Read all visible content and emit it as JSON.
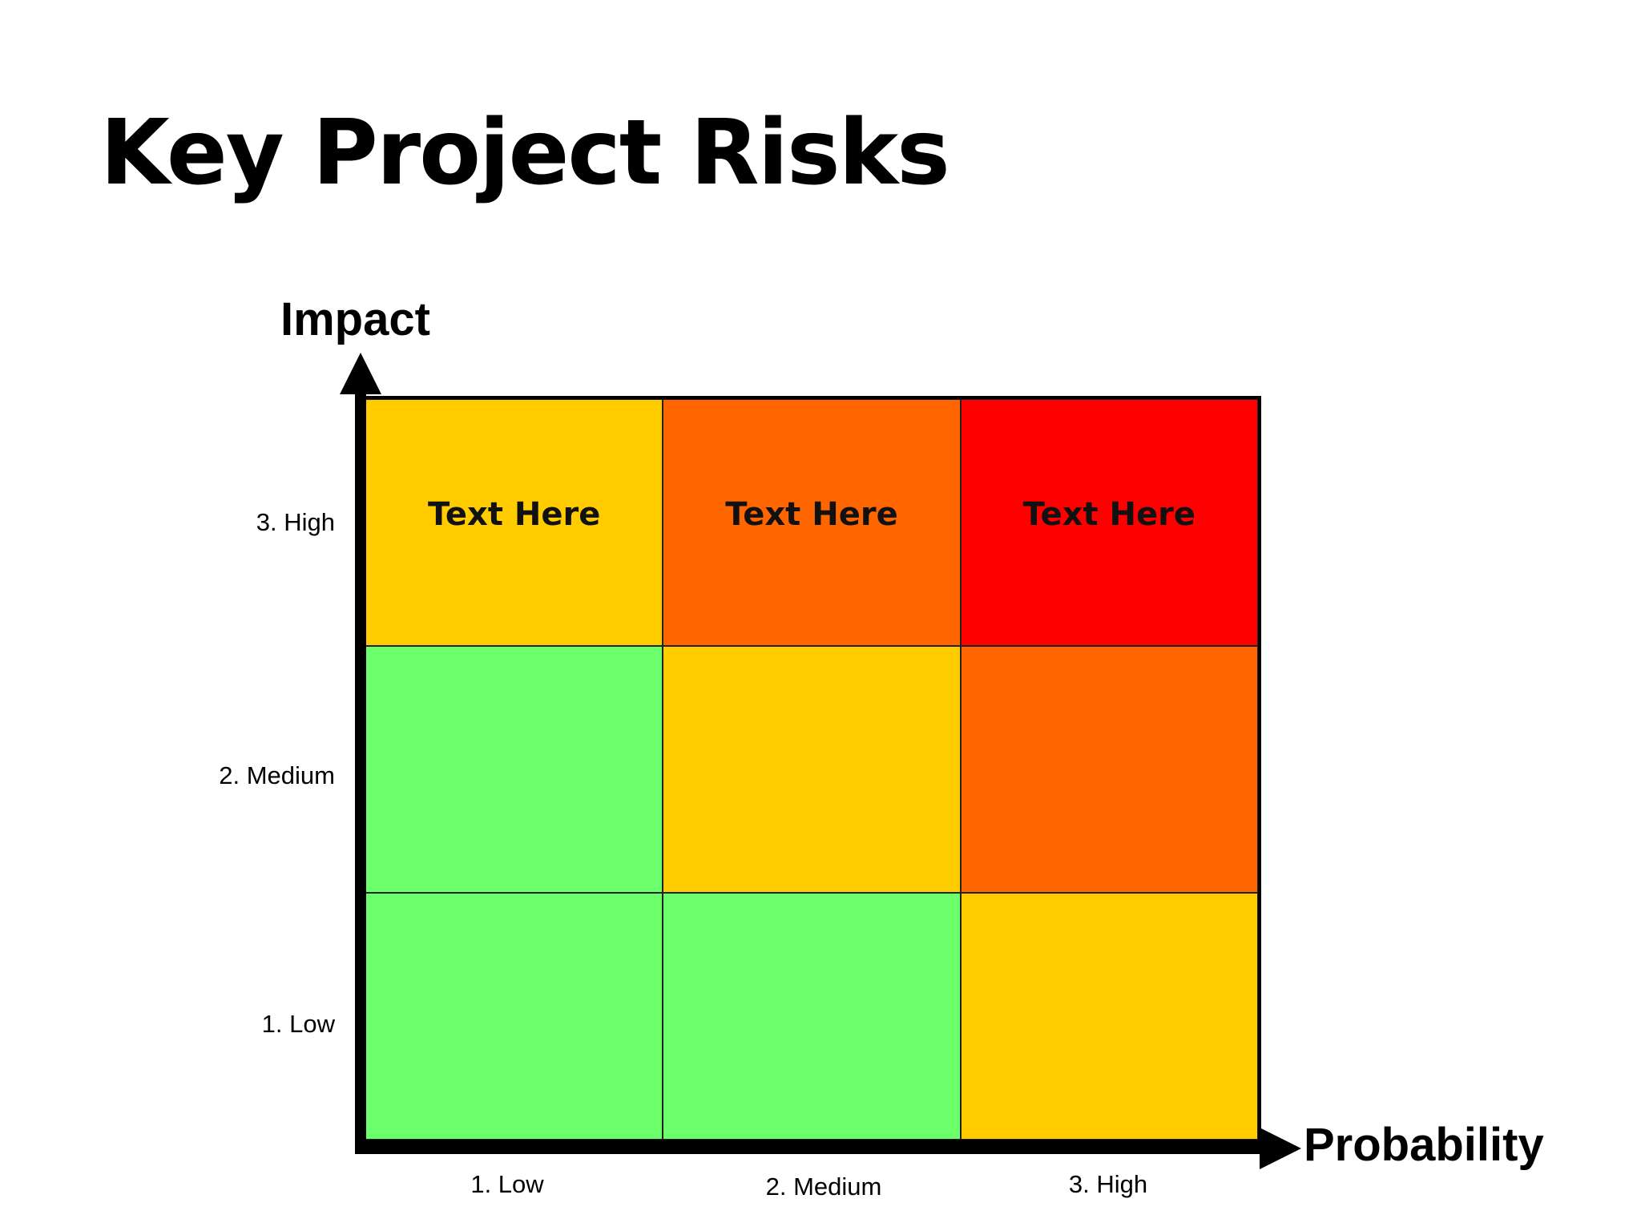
{
  "title": "Key Project Risks",
  "y_axis": {
    "title": "Impact",
    "ticks": [
      "3. High",
      "2. Medium",
      "1. Low"
    ]
  },
  "x_axis": {
    "title": "Probability",
    "ticks": [
      "1. Low",
      "2. Medium",
      "3. High"
    ]
  },
  "colors": {
    "green": "#6bff6b",
    "yellow": "#ffcc00",
    "orange": "#ff6600",
    "red": "#ff0000"
  },
  "matrix": [
    [
      {
        "color": "yellow",
        "label": "Text Here"
      },
      {
        "color": "orange",
        "label": "Text Here"
      },
      {
        "color": "red",
        "label": "Text Here"
      }
    ],
    [
      {
        "color": "green",
        "label": ""
      },
      {
        "color": "yellow",
        "label": ""
      },
      {
        "color": "orange",
        "label": ""
      }
    ],
    [
      {
        "color": "green",
        "label": ""
      },
      {
        "color": "green",
        "label": ""
      },
      {
        "color": "yellow",
        "label": ""
      }
    ]
  ]
}
